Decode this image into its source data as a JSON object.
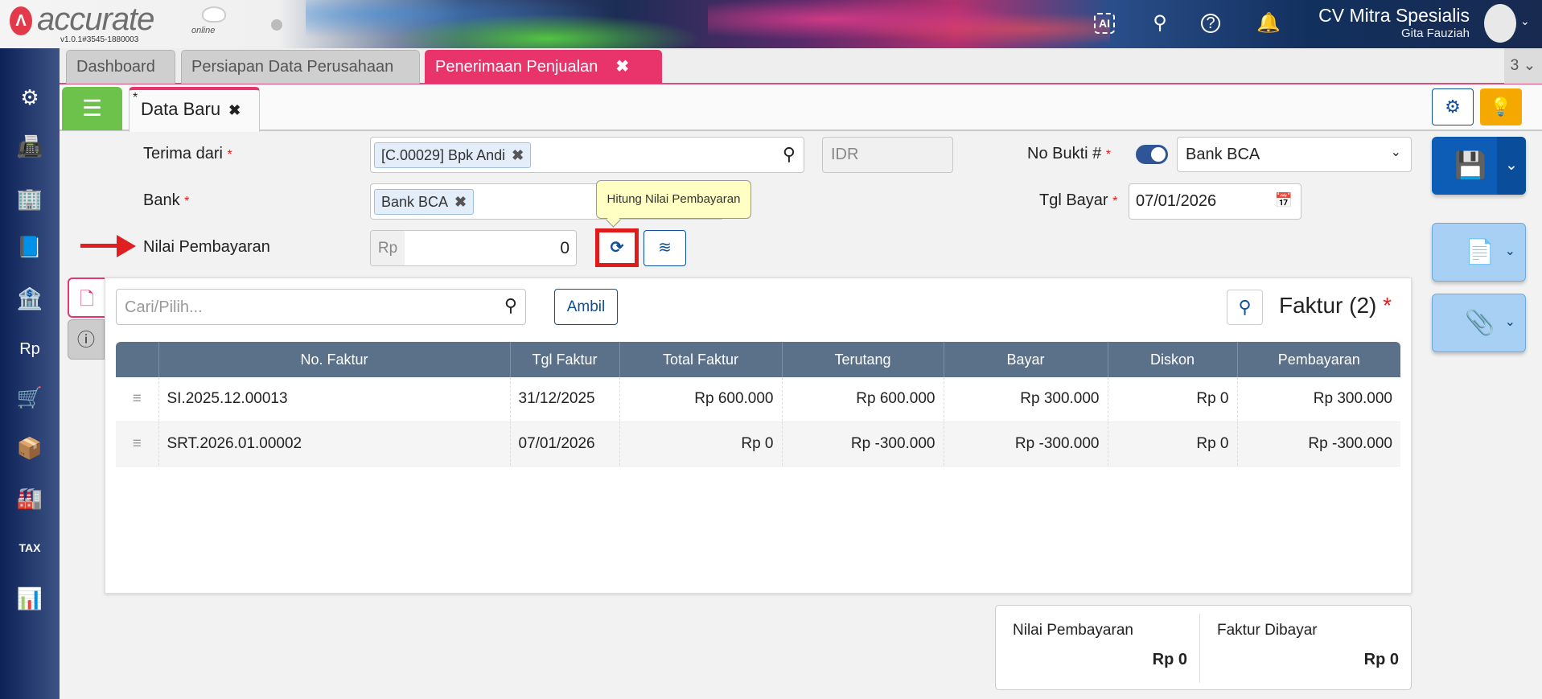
{
  "app": {
    "logo": "accurate",
    "logo_sub": "online",
    "version": "v1.0.1#3545-1880003",
    "company": "CV Mitra Spesialis",
    "user": "Gita Fauziah",
    "icons": [
      "ai-icon",
      "search-icon",
      "help-icon",
      "bell-icon"
    ]
  },
  "tabs": [
    {
      "label": "Dashboard"
    },
    {
      "label": "Persiapan Data Perusahaan"
    },
    {
      "label": "Penerimaan Penjualan",
      "active": true
    }
  ],
  "tab_count": "3",
  "subtab": {
    "label": "Data Baru",
    "modified": "*"
  },
  "sidebar": [
    "gear-icon",
    "fax-icon",
    "building-icon",
    "book-icon",
    "bank-icon",
    "money-bag-icon",
    "cart-icon",
    "trolley-icon",
    "factory-icon",
    "tax-icon",
    "report-icon"
  ],
  "form": {
    "terima_dari_label": "Terima dari",
    "terima_dari_value": "[C.00029] Bpk Andi",
    "currency": "IDR",
    "bank_label": "Bank",
    "bank_value": "Bank BCA",
    "nilai_label": "Nilai Pembayaran",
    "nilai_prefix": "Rp",
    "nilai_value": "0",
    "no_bukti_label": "No Bukti #",
    "no_bukti_value": "Bank BCA",
    "no_bukti_auto": true,
    "tgl_label": "Tgl Bayar",
    "tgl_value": "07/01/2026",
    "tooltip": "Hitung Nilai Pembayaran",
    "required": "*"
  },
  "panel": {
    "search_placeholder": "Cari/Pilih...",
    "ambil_label": "Ambil",
    "title": "Faktur (2)",
    "required": "*",
    "columns": [
      "No. Faktur",
      "Tgl Faktur",
      "Total Faktur",
      "Terutang",
      "Bayar",
      "Diskon",
      "Pembayaran"
    ],
    "rows": [
      [
        "SI.2025.12.00013",
        "31/12/2025",
        "Rp 600.000",
        "Rp 600.000",
        "Rp 300.000",
        "Rp 0",
        "Rp 300.000"
      ],
      [
        "SRT.2026.01.00002",
        "07/01/2026",
        "Rp 0",
        "Rp -300.000",
        "Rp -300.000",
        "Rp 0",
        "Rp -300.000"
      ]
    ]
  },
  "summary": {
    "nilai_label": "Nilai Pembayaran",
    "nilai_value": "Rp 0",
    "faktur_label": "Faktur Dibayar",
    "faktur_value": "Rp 0"
  },
  "colors": {
    "accent": "#e8336b",
    "primary": "#0d5cb6",
    "success": "#6cc24a",
    "warning": "#f5a800",
    "table_header": "#5b7089",
    "highlight": "#e02020"
  }
}
